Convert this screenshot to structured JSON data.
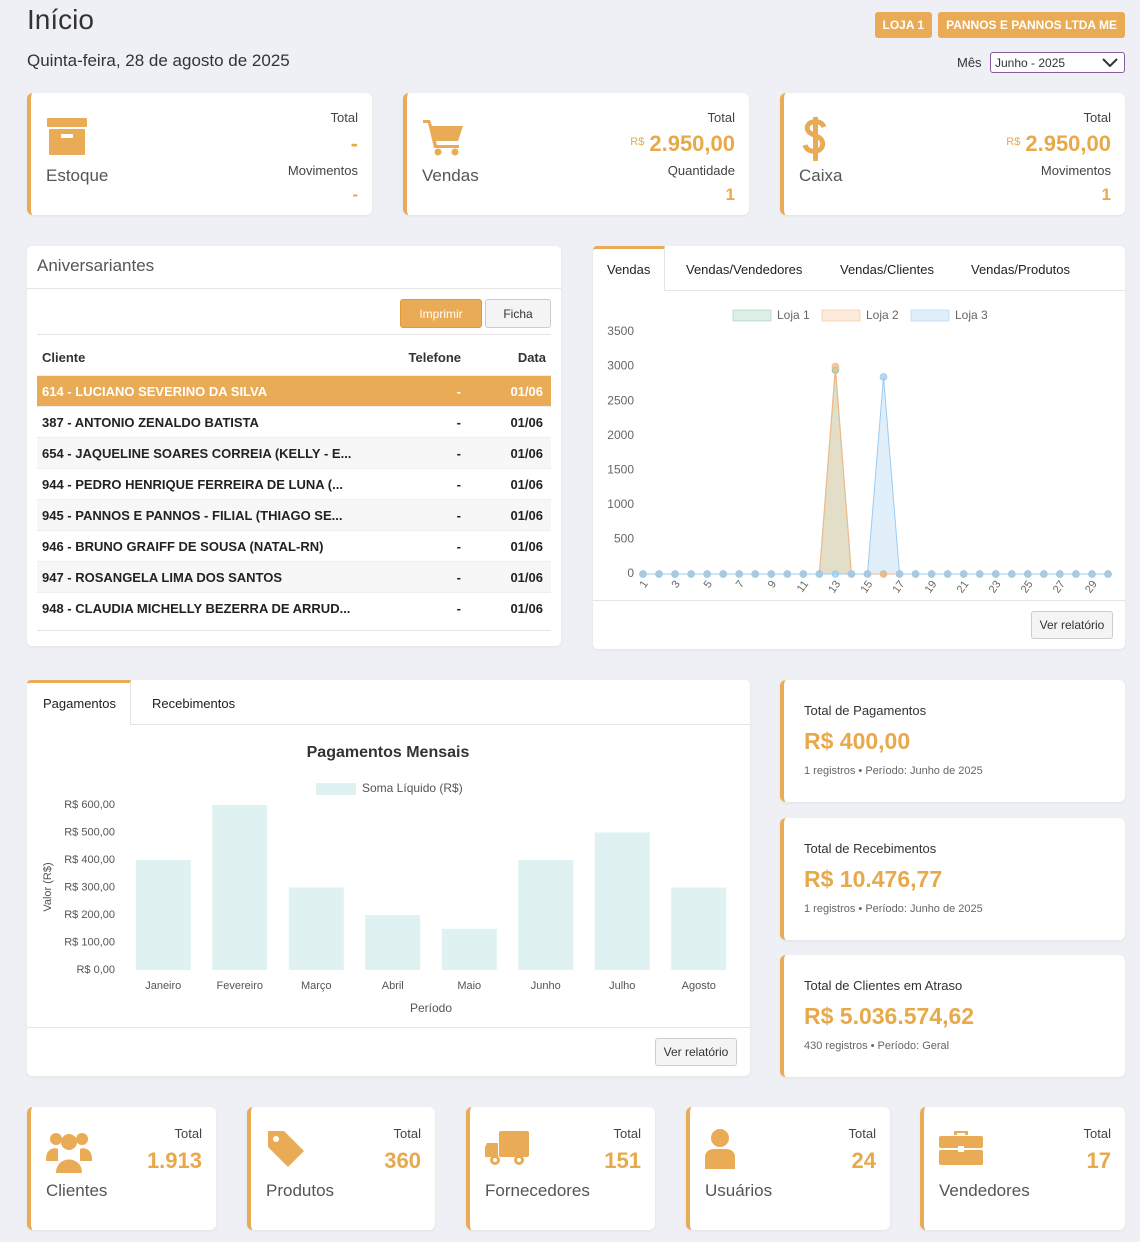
{
  "header": {
    "title": "Início",
    "date": "Quinta-feira, 28 de agosto de 2025",
    "badges": [
      "LOJA 1",
      "PANNOS E PANNOS LTDA ME"
    ],
    "month_label": "Mês",
    "month_value": "Junho - 2025"
  },
  "top_cards": [
    {
      "name": "Estoque",
      "stats": [
        {
          "label": "Total",
          "value": "-"
        },
        {
          "label": "Movimentos",
          "value": "-"
        }
      ]
    },
    {
      "name": "Vendas",
      "stats": [
        {
          "label": "Total",
          "currency": "R$",
          "value": "2.950,00"
        },
        {
          "label": "Quantidade",
          "value": "1"
        }
      ]
    },
    {
      "name": "Caixa",
      "stats": [
        {
          "label": "Total",
          "currency": "R$",
          "value": "2.950,00"
        },
        {
          "label": "Movimentos",
          "value": "1"
        }
      ]
    }
  ],
  "birthdays": {
    "title": "Aniversariantes",
    "buttons": [
      "Imprimir",
      "Ficha"
    ],
    "columns": [
      "Cliente",
      "Telefone",
      "Data"
    ],
    "rows": [
      [
        "614 - LUCIANO SEVERINO DA SILVA",
        "-",
        "01/06"
      ],
      [
        "387 - ANTONIO ZENALDO BATISTA",
        "-",
        "01/06"
      ],
      [
        "654 - JAQUELINE SOARES CORREIA (KELLY - E...",
        "-",
        "01/06"
      ],
      [
        "944 - PEDRO HENRIQUE FERREIRA DE LUNA (...",
        "-",
        "01/06"
      ],
      [
        "945 - PANNOS E PANNOS - FILIAL (THIAGO SE...",
        "-",
        "01/06"
      ],
      [
        "946 - BRUNO GRAIFF DE SOUSA (NATAL-RN)",
        "-",
        "01/06"
      ],
      [
        "947 - ROSANGELA LIMA DOS SANTOS",
        "-",
        "01/06"
      ],
      [
        "948 - CLAUDIA MICHELLY BEZERRA DE ARRUD...",
        "-",
        "01/06"
      ]
    ]
  },
  "sales_tabs": [
    "Vendas",
    "Vendas/Vendedores",
    "Vendas/Clientes",
    "Vendas/Produtos"
  ],
  "sales_button": "Ver relatório",
  "payment_tabs": [
    "Pagamentos",
    "Recebimentos"
  ],
  "payment_button": "Ver relatório",
  "summaries": [
    {
      "title": "Total de Pagamentos",
      "value": "R$ 400,00",
      "note": "1 registros • Período: Junho de 2025"
    },
    {
      "title": "Total de Recebimentos",
      "value": "R$ 10.476,77",
      "note": "1 registros • Período: Junho de 2025"
    },
    {
      "title": "Total de Clientes em Atraso",
      "value": "R$ 5.036.574,62",
      "note": "430 registros • Período: Geral"
    }
  ],
  "bottom_cards": [
    {
      "name": "Clientes",
      "label": "Total",
      "value": "1.913"
    },
    {
      "name": "Produtos",
      "label": "Total",
      "value": "360"
    },
    {
      "name": "Fornecedores",
      "label": "Total",
      "value": "151"
    },
    {
      "name": "Usuários",
      "label": "Total",
      "value": "24"
    },
    {
      "name": "Vendedores",
      "label": "Total",
      "value": "17"
    }
  ],
  "chart_data": [
    {
      "type": "line",
      "x": [
        1,
        2,
        3,
        4,
        5,
        6,
        7,
        8,
        9,
        10,
        11,
        12,
        13,
        14,
        15,
        16,
        17,
        18,
        19,
        20,
        21,
        22,
        23,
        24,
        25,
        26,
        27,
        28,
        29,
        30
      ],
      "xlim": [
        1,
        30
      ],
      "xticks": [
        1,
        3,
        5,
        7,
        9,
        11,
        13,
        15,
        17,
        19,
        21,
        23,
        25,
        27,
        29
      ],
      "ylim": [
        0,
        3500
      ],
      "yticks": [
        0,
        500,
        1000,
        1500,
        2000,
        2500,
        3000,
        3500
      ],
      "grid": false,
      "series": [
        {
          "name": "Loja 1",
          "color": "#8cc7a8",
          "values": [
            0,
            0,
            0,
            0,
            0,
            0,
            0,
            0,
            0,
            0,
            0,
            0,
            2950,
            0,
            0,
            0,
            0,
            0,
            0,
            0,
            0,
            0,
            0,
            0,
            0,
            0,
            0,
            0,
            0,
            0
          ]
        },
        {
          "name": "Loja 2",
          "color": "#f5b886",
          "values": [
            0,
            0,
            0,
            0,
            0,
            0,
            0,
            0,
            0,
            0,
            0,
            0,
            3000,
            0,
            0,
            0,
            0,
            0,
            0,
            0,
            0,
            0,
            0,
            0,
            0,
            0,
            0,
            0,
            0,
            0
          ]
        },
        {
          "name": "Loja 3",
          "color": "#9ccbf0",
          "values": [
            0,
            0,
            0,
            0,
            0,
            0,
            0,
            0,
            0,
            0,
            0,
            0,
            0,
            0,
            0,
            2850,
            0,
            0,
            0,
            0,
            0,
            0,
            0,
            0,
            0,
            0,
            0,
            0,
            0,
            0
          ]
        }
      ]
    },
    {
      "type": "bar",
      "title": "Pagamentos Mensais",
      "x_label": "Período",
      "y_label": "Valor (R$)",
      "categories": [
        "Janeiro",
        "Fevereiro",
        "Março",
        "Abril",
        "Maio",
        "Junho",
        "Julho",
        "Agosto"
      ],
      "ylim": [
        0,
        600
      ],
      "yticks": [
        {
          "value": 0,
          "label": "R$ 0,00"
        },
        {
          "value": 100,
          "label": "R$ 100,00"
        },
        {
          "value": 200,
          "label": "R$ 200,00"
        },
        {
          "value": 300,
          "label": "R$ 300,00"
        },
        {
          "value": 400,
          "label": "R$ 400,00"
        },
        {
          "value": 500,
          "label": "R$ 500,00"
        },
        {
          "value": 600,
          "label": "R$ 600,00"
        }
      ],
      "grid": false,
      "series": [
        {
          "name": "Soma Líquido (R$)",
          "color": "#dff1f1",
          "values": [
            400,
            600,
            300,
            200,
            150,
            400,
            500,
            300
          ]
        }
      ]
    }
  ]
}
